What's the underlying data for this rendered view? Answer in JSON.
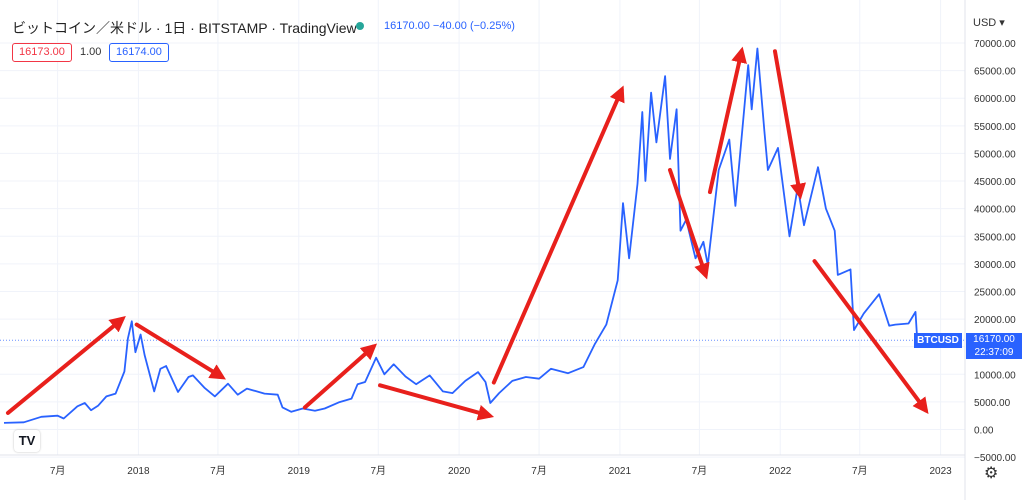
{
  "header": {
    "title": "ビットコイン／米ドル · 1日 · BITSTAMP · TradingView",
    "quote": "16170.00  −40.00 (−0.25%)",
    "bid": "16173.00",
    "spread": "1.00",
    "ask": "16174.00",
    "currency": "USD ▾"
  },
  "price_label": {
    "symbol": "BTCUSD",
    "price": "16170.00",
    "countdown": "22:37:09"
  },
  "colors": {
    "line": "#2962ff",
    "arrow": "#e8201c",
    "grid": "#f0f3fa",
    "up": "#26a69a"
  },
  "icons": {
    "logo": "tradingview-logo-icon",
    "settings": "gear-icon"
  },
  "chart_data": {
    "type": "line",
    "title": "ビットコイン／米ドル · 1日 · BITSTAMP · TradingView",
    "xlabel": "",
    "ylabel": "",
    "x_ticks": [
      "7月",
      "2018",
      "7月",
      "2019",
      "7月",
      "2020",
      "7月",
      "2021",
      "7月",
      "2022",
      "7月",
      "2023"
    ],
    "y_ticks": [
      "70000.00",
      "65000.00",
      "60000.00",
      "55000.00",
      "50000.00",
      "45000.00",
      "40000.00",
      "35000.00",
      "30000.00",
      "25000.00",
      "20000.00",
      "15000.00",
      "10000.00",
      "5000.00",
      "0.00",
      "−5000.00"
    ],
    "ylim": [
      -5000,
      72000
    ],
    "grid": true,
    "series": [
      {
        "points": [
          [
            "2017-03-01",
            1200
          ],
          [
            "2017-04-15",
            1300
          ],
          [
            "2017-05-25",
            2300
          ],
          [
            "2017-07-01",
            2500
          ],
          [
            "2017-07-15",
            2000
          ],
          [
            "2017-08-15",
            4200
          ],
          [
            "2017-09-01",
            4800
          ],
          [
            "2017-09-15",
            3500
          ],
          [
            "2017-10-01",
            4300
          ],
          [
            "2017-10-20",
            6000
          ],
          [
            "2017-11-10",
            6500
          ],
          [
            "2017-11-30",
            10500
          ],
          [
            "2017-12-08",
            16500
          ],
          [
            "2017-12-17",
            19600
          ],
          [
            "2017-12-25",
            14000
          ],
          [
            "2018-01-06",
            17200
          ],
          [
            "2018-01-15",
            13500
          ],
          [
            "2018-02-06",
            6900
          ],
          [
            "2018-02-20",
            11000
          ],
          [
            "2018-03-05",
            11500
          ],
          [
            "2018-04-01",
            6800
          ],
          [
            "2018-04-25",
            9500
          ],
          [
            "2018-05-05",
            9800
          ],
          [
            "2018-06-01",
            7500
          ],
          [
            "2018-06-24",
            6000
          ],
          [
            "2018-07-24",
            8300
          ],
          [
            "2018-08-15",
            6300
          ],
          [
            "2018-09-05",
            7400
          ],
          [
            "2018-10-15",
            6500
          ],
          [
            "2018-11-14",
            6300
          ],
          [
            "2018-11-25",
            4000
          ],
          [
            "2018-12-15",
            3200
          ],
          [
            "2019-01-10",
            3800
          ],
          [
            "2019-02-07",
            3400
          ],
          [
            "2019-03-01",
            3800
          ],
          [
            "2019-04-02",
            4900
          ],
          [
            "2019-05-01",
            5600
          ],
          [
            "2019-05-15",
            8200
          ],
          [
            "2019-06-01",
            8600
          ],
          [
            "2019-06-26",
            13000
          ],
          [
            "2019-07-15",
            10000
          ],
          [
            "2019-08-05",
            11800
          ],
          [
            "2019-09-01",
            9600
          ],
          [
            "2019-09-25",
            8200
          ],
          [
            "2019-10-26",
            9800
          ],
          [
            "2019-11-25",
            6900
          ],
          [
            "2019-12-17",
            6600
          ],
          [
            "2020-01-15",
            8800
          ],
          [
            "2020-02-13",
            10400
          ],
          [
            "2020-03-01",
            8600
          ],
          [
            "2020-03-12",
            4800
          ],
          [
            "2020-04-01",
            6600
          ],
          [
            "2020-05-01",
            8800
          ],
          [
            "2020-06-01",
            9500
          ],
          [
            "2020-07-01",
            9200
          ],
          [
            "2020-07-28",
            11000
          ],
          [
            "2020-09-05",
            10200
          ],
          [
            "2020-10-10",
            11300
          ],
          [
            "2020-11-05",
            15500
          ],
          [
            "2020-12-01",
            19000
          ],
          [
            "2020-12-27",
            27000
          ],
          [
            "2021-01-08",
            41000
          ],
          [
            "2021-01-22",
            31000
          ],
          [
            "2021-02-10",
            44500
          ],
          [
            "2021-02-21",
            57500
          ],
          [
            "2021-02-28",
            45000
          ],
          [
            "2021-03-13",
            61000
          ],
          [
            "2021-03-25",
            52000
          ],
          [
            "2021-04-14",
            64000
          ],
          [
            "2021-04-25",
            49000
          ],
          [
            "2021-05-10",
            58000
          ],
          [
            "2021-05-19",
            36000
          ],
          [
            "2021-06-01",
            38000
          ],
          [
            "2021-06-22",
            31000
          ],
          [
            "2021-07-10",
            34000
          ],
          [
            "2021-07-20",
            29800
          ],
          [
            "2021-08-14",
            47000
          ],
          [
            "2021-09-07",
            52500
          ],
          [
            "2021-09-21",
            40500
          ],
          [
            "2021-10-20",
            66000
          ],
          [
            "2021-10-28",
            58000
          ],
          [
            "2021-11-10",
            69000
          ],
          [
            "2021-11-26",
            54000
          ],
          [
            "2021-12-04",
            47000
          ],
          [
            "2021-12-27",
            51000
          ],
          [
            "2022-01-22",
            35000
          ],
          [
            "2022-02-10",
            44000
          ],
          [
            "2022-02-24",
            37000
          ],
          [
            "2022-03-28",
            47500
          ],
          [
            "2022-04-15",
            40000
          ],
          [
            "2022-05-05",
            36000
          ],
          [
            "2022-05-12",
            28000
          ],
          [
            "2022-06-10",
            29000
          ],
          [
            "2022-06-18",
            18000
          ],
          [
            "2022-07-10",
            21000
          ],
          [
            "2022-08-14",
            24500
          ],
          [
            "2022-09-06",
            18800
          ],
          [
            "2022-09-20",
            19000
          ],
          [
            "2022-10-20",
            19200
          ],
          [
            "2022-11-05",
            21300
          ],
          [
            "2022-11-09",
            16000
          ],
          [
            "2022-11-21",
            15800
          ],
          [
            "2022-11-30",
            17100
          ],
          [
            "2022-12-05",
            16170
          ]
        ]
      }
    ],
    "annotations": [
      {
        "type": "arrow",
        "from": [
          "2017-03-10",
          3000
        ],
        "to": [
          "2017-11-25",
          20000
        ]
      },
      {
        "type": "arrow",
        "from": [
          "2017-12-28",
          19000
        ],
        "to": [
          "2018-07-10",
          9500
        ]
      },
      {
        "type": "arrow",
        "from": [
          "2019-01-15",
          4000
        ],
        "to": [
          "2019-06-20",
          15000
        ]
      },
      {
        "type": "arrow",
        "from": [
          "2019-07-05",
          8000
        ],
        "to": [
          "2020-03-10",
          2500
        ]
      },
      {
        "type": "arrow",
        "from": [
          "2020-03-20",
          8500
        ],
        "to": [
          "2021-01-05",
          61500
        ]
      },
      {
        "type": "arrow",
        "from": [
          "2021-04-25",
          47000
        ],
        "to": [
          "2021-07-15",
          28000
        ]
      },
      {
        "type": "arrow",
        "from": [
          "2021-07-25",
          43000
        ],
        "to": [
          "2021-10-05",
          68500
        ]
      },
      {
        "type": "arrow",
        "from": [
          "2021-12-20",
          68500
        ],
        "to": [
          "2022-02-15",
          42500
        ]
      },
      {
        "type": "arrow",
        "from": [
          "2022-03-20",
          30500
        ],
        "to": [
          "2022-11-28",
          3500
        ]
      }
    ]
  }
}
